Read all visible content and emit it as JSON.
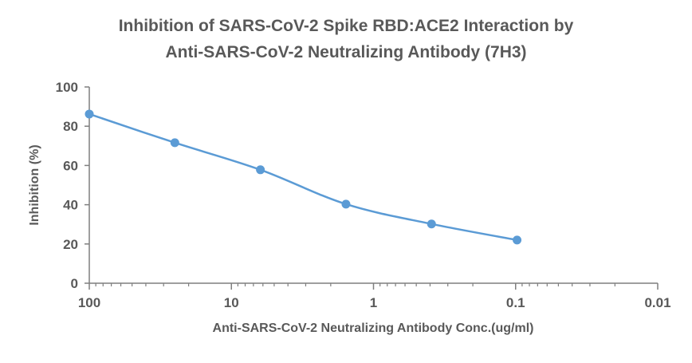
{
  "chart_data": {
    "type": "line",
    "title_lines": [
      "Inhibition of SARS-CoV-2 Spike RBD:ACE2 Interaction by",
      "Anti-SARS-CoV-2 Neutralizing Antibody (7H3)"
    ],
    "xlabel": "Anti-SARS-CoV-2 Neutralizing Antibody Conc.(ug/ml)",
    "ylabel": "Inhibition (%)",
    "x_scale": "log",
    "x_reversed": true,
    "xlim": [
      100,
      0.01
    ],
    "ylim": [
      0,
      100
    ],
    "x_ticks": [
      100,
      10,
      1,
      0.1,
      0.01
    ],
    "x_tick_labels": [
      "100",
      "10",
      "1",
      "0.1",
      "0.01"
    ],
    "y_ticks": [
      0,
      20,
      40,
      60,
      80,
      100
    ],
    "y_tick_labels": [
      "0",
      "20",
      "40",
      "60",
      "80",
      "100"
    ],
    "grid": false,
    "smoothed": true,
    "series": [
      {
        "x": [
          100,
          25,
          6.25,
          1.5625,
          0.390625,
          0.0977
        ],
        "y": [
          86.2,
          71.6,
          57.8,
          40.3,
          30.2,
          22.0
        ],
        "color": "#5B9BD5"
      }
    ]
  }
}
